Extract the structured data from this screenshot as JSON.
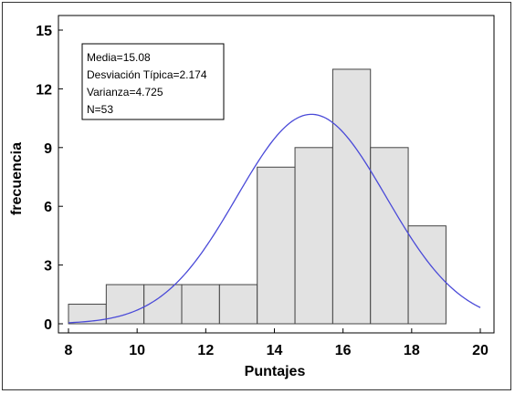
{
  "chart_data": {
    "type": "histogram",
    "xlabel": "Puntajes",
    "ylabel": "frecuencia",
    "xlim": [
      8,
      20
    ],
    "ylim": [
      0,
      15
    ],
    "x_ticks": [
      8,
      10,
      12,
      14,
      16,
      18,
      20
    ],
    "y_ticks": [
      0,
      3,
      6,
      9,
      12,
      15
    ],
    "bins": [
      {
        "x0": 8.0,
        "x1": 9.1,
        "count": 1
      },
      {
        "x0": 9.1,
        "x1": 10.2,
        "count": 2
      },
      {
        "x0": 10.2,
        "x1": 11.3,
        "count": 2
      },
      {
        "x0": 11.3,
        "x1": 12.4,
        "count": 2
      },
      {
        "x0": 12.4,
        "x1": 13.5,
        "count": 2
      },
      {
        "x0": 13.5,
        "x1": 14.6,
        "count": 8
      },
      {
        "x0": 14.6,
        "x1": 15.7,
        "count": 9
      },
      {
        "x0": 15.7,
        "x1": 16.8,
        "count": 13
      },
      {
        "x0": 16.8,
        "x1": 17.9,
        "count": 9
      },
      {
        "x0": 17.9,
        "x1": 19.0,
        "count": 5
      }
    ],
    "normal_curve": {
      "mean": 15.08,
      "sd": 2.174,
      "n": 53,
      "bin_width": 1.1,
      "x_range": [
        8,
        20
      ]
    },
    "stats_box": [
      "Media=15.08",
      "Desviación Típica=2.174",
      "Varianza=4.725",
      "N=53"
    ],
    "grid": false,
    "colors": {
      "bar_fill": "#e2e2e2",
      "bar_stroke": "#444444",
      "curve": "#4a4ad8"
    }
  }
}
